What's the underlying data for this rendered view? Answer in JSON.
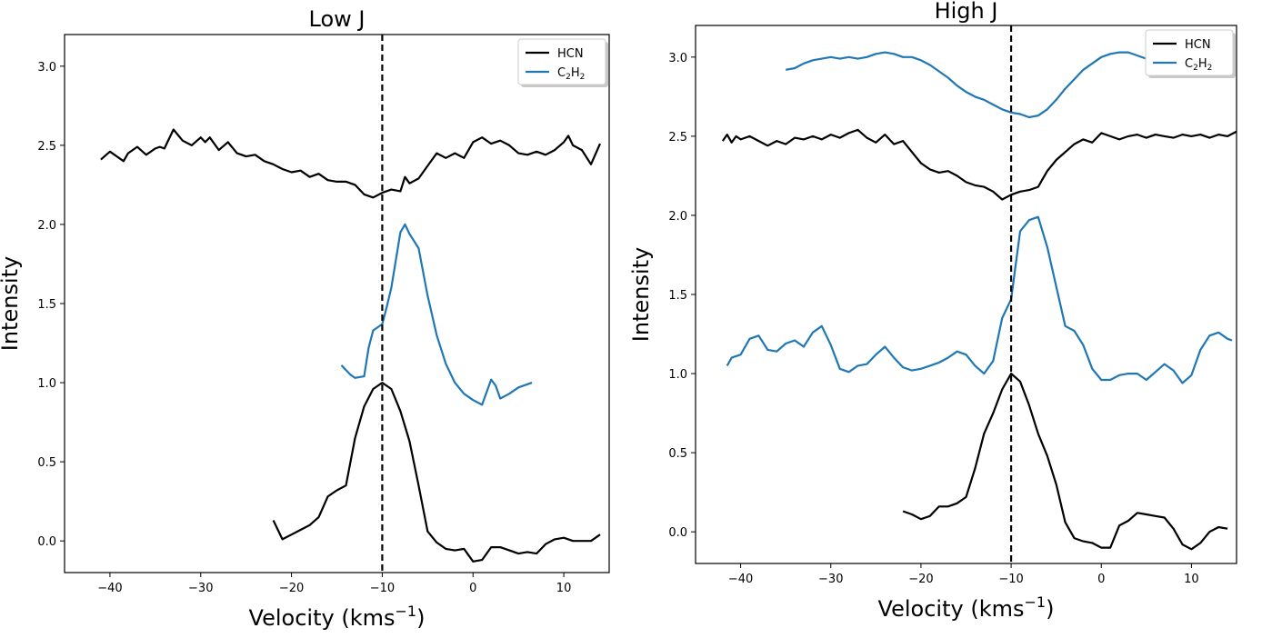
{
  "chart_data": [
    {
      "type": "line",
      "title": "Low J",
      "xlabel": "Velocity (kms",
      "xlabel_sup": "−1",
      "xlabel_close": ")",
      "ylabel": "Intensity",
      "xlim": [
        -45,
        15
      ],
      "ylim": [
        -0.2,
        3.2
      ],
      "xticks": [
        -40,
        -30,
        -20,
        -10,
        0,
        10
      ],
      "xtick_labels": [
        "−40",
        "−30",
        "−20",
        "−10",
        "0",
        "10"
      ],
      "yticks": [
        0.0,
        0.5,
        1.0,
        1.5,
        2.0,
        2.5,
        3.0
      ],
      "ytick_labels": [
        "0.0",
        "0.5",
        "1.0",
        "1.5",
        "2.0",
        "2.5",
        "3.0"
      ],
      "vline": -10,
      "legend": {
        "placement": "upper-right",
        "entries": [
          {
            "label": "HCN",
            "color": "#000000"
          },
          {
            "label_parts": [
              "C",
              "2",
              "H",
              "2"
            ],
            "color": "#1f77b4"
          }
        ]
      },
      "series": [
        {
          "color": "#000000",
          "x": [
            -41,
            -40,
            -39,
            -38.5,
            -38,
            -37,
            -36,
            -35,
            -34.5,
            -34,
            -33,
            -32,
            -31,
            -30,
            -29.5,
            -29,
            -28,
            -27,
            -26,
            -25,
            -24,
            -23,
            -22,
            -21,
            -20,
            -19,
            -18,
            -17,
            -16,
            -15,
            -14,
            -13,
            -12,
            -11,
            -10,
            -9,
            -8,
            -7.5,
            -7,
            -6,
            -5,
            -4,
            -3,
            -2,
            -1,
            0,
            1,
            2,
            3,
            4,
            5,
            6,
            7,
            8,
            9,
            10,
            10.5,
            11,
            12,
            13,
            14
          ],
          "y": [
            2.41,
            2.46,
            2.42,
            2.4,
            2.45,
            2.49,
            2.44,
            2.48,
            2.49,
            2.48,
            2.6,
            2.53,
            2.5,
            2.55,
            2.52,
            2.55,
            2.47,
            2.52,
            2.45,
            2.43,
            2.44,
            2.4,
            2.38,
            2.35,
            2.33,
            2.34,
            2.3,
            2.32,
            2.28,
            2.27,
            2.27,
            2.25,
            2.19,
            2.17,
            2.2,
            2.22,
            2.21,
            2.3,
            2.26,
            2.29,
            2.37,
            2.45,
            2.42,
            2.45,
            2.42,
            2.52,
            2.55,
            2.51,
            2.53,
            2.5,
            2.45,
            2.44,
            2.46,
            2.44,
            2.47,
            2.52,
            2.56,
            2.5,
            2.47,
            2.38,
            2.51
          ]
        },
        {
          "color": "#1f77b4",
          "x": [
            -14.5,
            -13.5,
            -13,
            -12,
            -11.5,
            -11,
            -10,
            -9.5,
            -9,
            -8,
            -7.5,
            -7,
            -6,
            -5,
            -4,
            -3,
            -2,
            -1,
            0,
            1,
            2,
            2.5,
            3,
            4,
            5,
            6,
            6.5
          ],
          "y": [
            1.11,
            1.05,
            1.03,
            1.04,
            1.22,
            1.33,
            1.37,
            1.48,
            1.6,
            1.95,
            2.0,
            1.94,
            1.85,
            1.55,
            1.3,
            1.12,
            1.0,
            0.93,
            0.89,
            0.86,
            1.02,
            0.98,
            0.9,
            0.93,
            0.97,
            0.99,
            1.0
          ]
        },
        {
          "color": "#000000",
          "x": [
            -22,
            -21,
            -20,
            -19,
            -18,
            -17,
            -16,
            -15.5,
            -15,
            -14,
            -13.5,
            -13,
            -12,
            -11,
            -10,
            -9,
            -8,
            -7,
            -6,
            -5,
            -4,
            -3,
            -2,
            -1,
            0,
            1,
            2,
            3,
            4,
            5,
            6,
            7,
            8,
            9,
            10,
            11,
            12,
            13,
            14
          ],
          "y": [
            0.13,
            0.01,
            0.04,
            0.07,
            0.1,
            0.15,
            0.28,
            0.3,
            0.32,
            0.35,
            0.5,
            0.65,
            0.85,
            0.96,
            1.0,
            0.96,
            0.82,
            0.63,
            0.35,
            0.06,
            -0.01,
            -0.05,
            -0.06,
            -0.05,
            -0.13,
            -0.12,
            -0.04,
            -0.04,
            -0.06,
            -0.08,
            -0.07,
            -0.08,
            -0.02,
            0.01,
            0.02,
            0.0,
            0.0,
            0.0,
            0.04
          ]
        }
      ]
    },
    {
      "type": "line",
      "title": "High J",
      "xlabel": "Velocity (kms",
      "xlabel_sup": "−1",
      "xlabel_close": ")",
      "ylabel": "Intensity",
      "xlim": [
        -45,
        15
      ],
      "ylim": [
        -0.2,
        3.2
      ],
      "xticks": [
        -40,
        -30,
        -20,
        -10,
        0,
        10
      ],
      "xtick_labels": [
        "−40",
        "−30",
        "−20",
        "−10",
        "0",
        "10"
      ],
      "yticks": [
        0.0,
        0.5,
        1.0,
        1.5,
        2.0,
        2.5,
        3.0
      ],
      "ytick_labels": [
        "0.0",
        "0.5",
        "1.0",
        "1.5",
        "2.0",
        "2.5",
        "3.0"
      ],
      "vline": -10,
      "legend": {
        "placement": "upper-right",
        "entries": [
          {
            "label": "HCN",
            "color": "#000000"
          },
          {
            "label_parts": [
              "C",
              "2",
              "H",
              "2"
            ],
            "color": "#1f77b4"
          }
        ]
      },
      "series": [
        {
          "color": "#1f77b4",
          "x": [
            -35,
            -34,
            -33,
            -32,
            -31,
            -30,
            -29,
            -28,
            -27,
            -26,
            -25,
            -24,
            -23,
            -22,
            -21,
            -20,
            -19,
            -18,
            -17,
            -16,
            -15,
            -14,
            -13,
            -12,
            -11,
            -10,
            -9,
            -8,
            -7,
            -6,
            -5,
            -4,
            -3,
            -2,
            -1,
            0,
            1,
            2,
            3,
            4,
            5,
            6,
            7,
            8,
            9,
            10,
            11,
            12,
            13,
            14,
            14.5
          ],
          "y": [
            2.92,
            2.93,
            2.96,
            2.98,
            2.99,
            3.0,
            2.99,
            3.0,
            2.99,
            3.0,
            3.02,
            3.03,
            3.02,
            3.0,
            3.0,
            2.98,
            2.95,
            2.91,
            2.87,
            2.82,
            2.78,
            2.75,
            2.73,
            2.7,
            2.67,
            2.65,
            2.64,
            2.62,
            2.63,
            2.67,
            2.73,
            2.8,
            2.86,
            2.92,
            2.96,
            3.0,
            3.02,
            3.03,
            3.03,
            3.01,
            2.99,
            2.97,
            2.96,
            2.95,
            2.95,
            2.95,
            2.95,
            2.95,
            2.95,
            2.95,
            2.95
          ]
        },
        {
          "color": "#000000",
          "x": [
            -42,
            -41.5,
            -41,
            -40.5,
            -40,
            -39,
            -38,
            -37,
            -36,
            -35,
            -34,
            -33,
            -32,
            -31,
            -30,
            -29,
            -28,
            -27,
            -26,
            -25,
            -24,
            -23,
            -22,
            -21,
            -20,
            -19,
            -18,
            -17,
            -16,
            -15,
            -14,
            -13,
            -12,
            -11,
            -10,
            -9,
            -8,
            -7,
            -6,
            -5,
            -4,
            -3,
            -2,
            -1,
            0,
            1,
            2,
            3,
            4,
            5,
            6,
            7,
            8,
            9,
            10,
            11,
            12,
            13,
            14,
            15
          ],
          "y": [
            2.47,
            2.51,
            2.46,
            2.5,
            2.48,
            2.5,
            2.47,
            2.44,
            2.47,
            2.45,
            2.49,
            2.48,
            2.5,
            2.48,
            2.51,
            2.49,
            2.52,
            2.54,
            2.49,
            2.46,
            2.51,
            2.45,
            2.47,
            2.4,
            2.33,
            2.29,
            2.27,
            2.28,
            2.25,
            2.21,
            2.19,
            2.18,
            2.15,
            2.1,
            2.13,
            2.15,
            2.16,
            2.18,
            2.28,
            2.35,
            2.4,
            2.45,
            2.48,
            2.46,
            2.52,
            2.5,
            2.48,
            2.5,
            2.51,
            2.49,
            2.51,
            2.5,
            2.49,
            2.51,
            2.5,
            2.51,
            2.49,
            2.51,
            2.5,
            2.53
          ]
        },
        {
          "color": "#1f77b4",
          "x": [
            -41.5,
            -41,
            -40,
            -39,
            -38,
            -37,
            -36,
            -35,
            -34,
            -33,
            -32,
            -31,
            -30,
            -29,
            -28,
            -27,
            -26,
            -25,
            -24,
            -23,
            -22,
            -21,
            -20,
            -19,
            -18,
            -17,
            -16,
            -15,
            -14,
            -13,
            -12,
            -11,
            -10,
            -9,
            -8,
            -7,
            -6,
            -5,
            -4,
            -3,
            -2,
            -1,
            0,
            1,
            2,
            3,
            4,
            5,
            6,
            7,
            8,
            9,
            10,
            11,
            12,
            13,
            14,
            14.5
          ],
          "y": [
            1.05,
            1.1,
            1.12,
            1.22,
            1.24,
            1.15,
            1.14,
            1.19,
            1.21,
            1.17,
            1.26,
            1.3,
            1.18,
            1.03,
            1.01,
            1.05,
            1.06,
            1.12,
            1.17,
            1.1,
            1.04,
            1.02,
            1.03,
            1.05,
            1.07,
            1.1,
            1.14,
            1.12,
            1.05,
            1.0,
            1.08,
            1.35,
            1.47,
            1.9,
            1.97,
            1.99,
            1.8,
            1.55,
            1.3,
            1.27,
            1.18,
            1.03,
            0.96,
            0.96,
            0.99,
            1.0,
            1.0,
            0.96,
            1.01,
            1.06,
            1.02,
            0.94,
            0.99,
            1.15,
            1.24,
            1.26,
            1.22,
            1.21
          ]
        },
        {
          "color": "#000000",
          "x": [
            -22,
            -21,
            -20,
            -19,
            -18,
            -17,
            -16,
            -15,
            -14,
            -13,
            -12,
            -11,
            -10,
            -9,
            -8,
            -7,
            -6,
            -5,
            -4,
            -3,
            -2,
            -1,
            0,
            1,
            2,
            3,
            4,
            5,
            6,
            7,
            8,
            9,
            10,
            11,
            12,
            13,
            14
          ],
          "y": [
            0.13,
            0.11,
            0.08,
            0.1,
            0.16,
            0.16,
            0.18,
            0.22,
            0.4,
            0.62,
            0.75,
            0.9,
            1.0,
            0.95,
            0.8,
            0.62,
            0.48,
            0.3,
            0.06,
            -0.04,
            -0.06,
            -0.07,
            -0.1,
            -0.1,
            0.04,
            0.07,
            0.12,
            0.11,
            0.1,
            0.09,
            0.02,
            -0.08,
            -0.11,
            -0.07,
            0.0,
            0.03,
            0.02
          ]
        }
      ]
    }
  ]
}
